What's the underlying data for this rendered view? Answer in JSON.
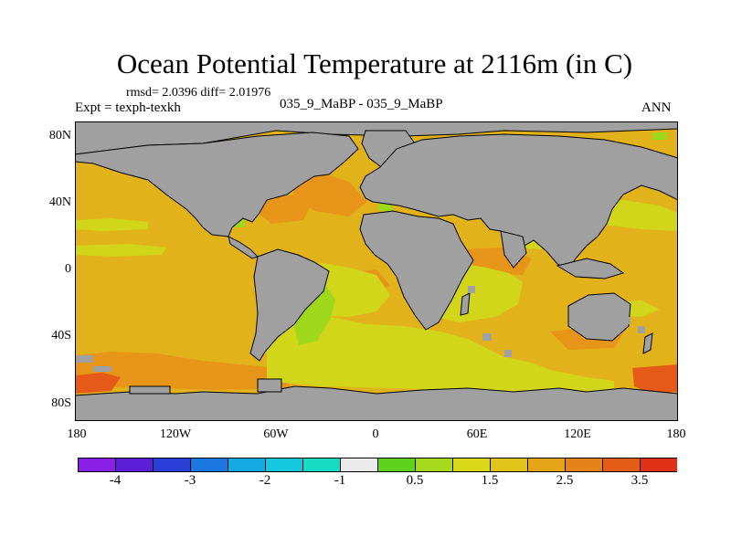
{
  "title": "Ocean Potential Temperature at 2116m (in C)",
  "stats": "rmsd= 2.0396 diff= 2.01976",
  "expt": "Expt = texph-texkh",
  "case": "035_9_MaBP - 035_9_MaBP",
  "season": "ANN",
  "lat_ticks": [
    "80N",
    "40N",
    "0",
    "40S",
    "80S"
  ],
  "lon_ticks": [
    "180",
    "120W",
    "60W",
    "0",
    "60E",
    "120E",
    "180"
  ],
  "colorbar": {
    "colors": [
      "#8a1fe6",
      "#5a1fd6",
      "#2a3fd8",
      "#1a78e0",
      "#16a8e2",
      "#16c7e0",
      "#17dcc3",
      "#ebebeb",
      "#5fd21e",
      "#a6d81b",
      "#d9d91a",
      "#e2c31a",
      "#e5a519",
      "#e58218",
      "#e35d17",
      "#e03015"
    ],
    "labels": [
      "-4",
      "-3",
      "-2",
      "-1",
      "0.5",
      "1.5",
      "2.5",
      "3.5"
    ]
  },
  "colors": {
    "land": "#a0a0a0",
    "ocean_main": "#e2b21b",
    "ocean_green": "#d2d61a",
    "ocean_lime": "#9fd81b",
    "ocean_orange": "#e69519",
    "ocean_red": "#e55a17"
  }
}
